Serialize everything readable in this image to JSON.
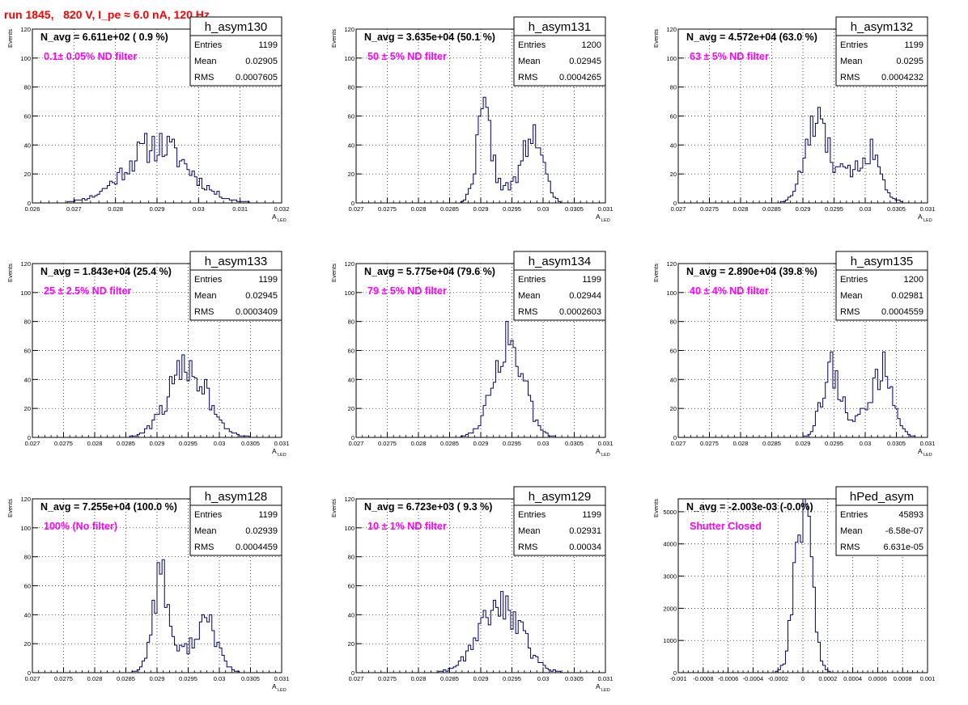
{
  "page_title": "run 1845,   820 V, I_pe ≈ 6.0 nA, 120 Hz",
  "colors": {
    "hist": "#00006e",
    "annotation": "#ff00ff",
    "title": "#ff0000",
    "grid": "#000000"
  },
  "chart_data": [
    {
      "type": "bar",
      "name": "h_asym130",
      "navg_text": "N_avg = 6.611e+02 ( 0.9 %)",
      "filter_text": "0.1± 0.05% ND filter",
      "stats": [
        [
          "Entries",
          "1199"
        ],
        [
          "Mean",
          "0.02905"
        ],
        [
          "RMS",
          "0.0007605"
        ]
      ],
      "xlim": [
        0.026,
        0.032
      ],
      "ylim": [
        0,
        120
      ],
      "xticks": [
        0.026,
        0.027,
        0.028,
        0.029,
        0.03,
        0.031,
        0.032
      ],
      "xtick_labels": [
        "0.026",
        "0.027",
        "0.028",
        "0.029",
        "0.03",
        "0.031",
        "0.032"
      ],
      "yticks": [
        0,
        20,
        40,
        60,
        80,
        100,
        120
      ],
      "ylabel": "Events",
      "xlabel": "A",
      "xlabel_sub": "LED",
      "peaks": [
        [
          0.029,
          0.00075,
          40
        ]
      ],
      "seed": 11
    },
    {
      "type": "bar",
      "name": "h_asym131",
      "navg_text": "N_avg = 3.635e+04 (50.1 %)",
      "filter_text": "50 ± 5% ND filter",
      "stats": [
        [
          "Entries",
          "1200"
        ],
        [
          "Mean",
          "0.02945"
        ],
        [
          "RMS",
          "0.0004265"
        ]
      ],
      "xlim": [
        0.027,
        0.031
      ],
      "ylim": [
        0,
        120
      ],
      "xticks": [
        0.027,
        0.0275,
        0.028,
        0.0285,
        0.029,
        0.0295,
        0.03,
        0.0305,
        0.031
      ],
      "xtick_labels": [
        "0.027",
        "0.0275",
        "0.028",
        "0.0285",
        "0.029",
        "0.0295",
        "0.03",
        "0.0305",
        "0.031"
      ],
      "yticks": [
        0,
        20,
        40,
        60,
        80,
        100,
        120
      ],
      "ylabel": "Events",
      "xlabel": "A",
      "xlabel_sub": "LED",
      "peaks": [
        [
          0.02905,
          0.00012,
          58
        ],
        [
          0.02985,
          0.00015,
          45
        ],
        [
          0.02945,
          0.00025,
          10
        ]
      ],
      "seed": 22
    },
    {
      "type": "bar",
      "name": "h_asym132",
      "navg_text": "N_avg = 4.572e+04 (63.0 %)",
      "filter_text": "63 ± 5% ND filter",
      "stats": [
        [
          "Entries",
          "1199"
        ],
        [
          "Mean",
          "0.0295"
        ],
        [
          "RMS",
          "0.0004232"
        ]
      ],
      "xlim": [
        0.027,
        0.031
      ],
      "ylim": [
        0,
        120
      ],
      "xticks": [
        0.027,
        0.0275,
        0.028,
        0.0285,
        0.029,
        0.0295,
        0.03,
        0.0305,
        0.031
      ],
      "xtick_labels": [
        "0.027",
        "0.0275",
        "0.028",
        "0.0285",
        "0.029",
        "0.0295",
        "0.03",
        "0.0305",
        "0.031"
      ],
      "yticks": [
        0,
        20,
        40,
        60,
        80,
        100,
        120
      ],
      "ylabel": "Events",
      "xlabel": "A",
      "xlabel_sub": "LED",
      "peaks": [
        [
          0.0292,
          0.00018,
          48
        ],
        [
          0.0301,
          0.00017,
          30
        ],
        [
          0.02965,
          0.0003,
          18
        ]
      ],
      "seed": 33
    },
    {
      "type": "bar",
      "name": "h_asym133",
      "navg_text": "N_avg = 1.843e+04 (25.4 %)",
      "filter_text": "25 ± 2.5% ND filter",
      "stats": [
        [
          "Entries",
          "1199"
        ],
        [
          "Mean",
          "0.02945"
        ],
        [
          "RMS",
          "0.0003409"
        ]
      ],
      "xlim": [
        0.027,
        0.031
      ],
      "ylim": [
        0,
        120
      ],
      "xticks": [
        0.027,
        0.0275,
        0.028,
        0.0285,
        0.029,
        0.0295,
        0.03,
        0.0305,
        0.031
      ],
      "xtick_labels": [
        "0.027",
        "0.0275",
        "0.028",
        "0.0285",
        "0.029",
        "0.0295",
        "0.03",
        "0.0305",
        "0.031"
      ],
      "yticks": [
        0,
        20,
        40,
        60,
        80,
        100,
        120
      ],
      "ylabel": "Events",
      "xlabel": "A",
      "xlabel_sub": "LED",
      "peaks": [
        [
          0.0295,
          0.00032,
          48
        ]
      ],
      "seed": 44
    },
    {
      "type": "bar",
      "name": "h_asym134",
      "navg_text": "N_avg = 5.775e+04 (79.6 %)",
      "filter_text": "79 ± 5% ND filter",
      "stats": [
        [
          "Entries",
          "1199"
        ],
        [
          "Mean",
          "0.02944"
        ],
        [
          "RMS",
          "0.0002603"
        ]
      ],
      "xlim": [
        0.027,
        0.031
      ],
      "ylim": [
        0,
        120
      ],
      "xticks": [
        0.027,
        0.0275,
        0.028,
        0.0285,
        0.029,
        0.0295,
        0.03,
        0.0305,
        0.031
      ],
      "xtick_labels": [
        "0.027",
        "0.0275",
        "0.028",
        "0.0285",
        "0.029",
        "0.0295",
        "0.03",
        "0.0305",
        "0.031"
      ],
      "yticks": [
        0,
        20,
        40,
        60,
        80,
        100,
        120
      ],
      "ylabel": "Events",
      "xlabel": "A",
      "xlabel_sub": "LED",
      "peaks": [
        [
          0.02944,
          0.00024,
          68
        ]
      ],
      "seed": 55
    },
    {
      "type": "bar",
      "name": "h_asym135",
      "navg_text": "N_avg = 2.890e+04 (39.8 %)",
      "filter_text": "40 ± 4% ND filter",
      "stats": [
        [
          "Entries",
          "1200"
        ],
        [
          "Mean",
          "0.02981"
        ],
        [
          "RMS",
          "0.0004559"
        ]
      ],
      "xlim": [
        0.027,
        0.031
      ],
      "ylim": [
        0,
        120
      ],
      "xticks": [
        0.027,
        0.0275,
        0.028,
        0.0285,
        0.029,
        0.0295,
        0.03,
        0.0305,
        0.031
      ],
      "xtick_labels": [
        "0.027",
        "0.0275",
        "0.028",
        "0.0285",
        "0.029",
        "0.0295",
        "0.03",
        "0.0305",
        "0.031"
      ],
      "yticks": [
        0,
        20,
        40,
        60,
        80,
        100,
        120
      ],
      "ylabel": "Events",
      "xlabel": "A",
      "xlabel_sub": "LED",
      "peaks": [
        [
          0.02945,
          0.00015,
          46
        ],
        [
          0.0303,
          0.00016,
          45
        ],
        [
          0.0299,
          0.0002,
          12
        ]
      ],
      "seed": 66
    },
    {
      "type": "bar",
      "name": "h_asym128",
      "navg_text": "N_avg = 7.255e+04 (100.0 %)",
      "filter_text": "100% (No filter)",
      "stats": [
        [
          "Entries",
          "1199"
        ],
        [
          "Mean",
          "0.02939"
        ],
        [
          "RMS",
          "0.0004459"
        ]
      ],
      "xlim": [
        0.027,
        0.031
      ],
      "ylim": [
        0,
        120
      ],
      "xticks": [
        0.027,
        0.0275,
        0.028,
        0.0285,
        0.029,
        0.0295,
        0.03,
        0.0305,
        0.031
      ],
      "xtick_labels": [
        "0.027",
        "0.0275",
        "0.028",
        "0.0285",
        "0.029",
        "0.0295",
        "0.03",
        "0.0305",
        "0.031"
      ],
      "yticks": [
        0,
        20,
        40,
        60,
        80,
        100,
        120
      ],
      "ylabel": "Events",
      "xlabel": "A",
      "xlabel_sub": "LED",
      "peaks": [
        [
          0.02905,
          0.00012,
          62
        ],
        [
          0.0298,
          0.00018,
          30
        ],
        [
          0.02935,
          0.0003,
          12
        ]
      ],
      "seed": 77
    },
    {
      "type": "bar",
      "name": "h_asym129",
      "navg_text": "N_avg = 6.723e+03 ( 9.3 %)",
      "filter_text": "10 ± 1% ND filter",
      "stats": [
        [
          "Entries",
          "1199"
        ],
        [
          "Mean",
          "0.02931"
        ],
        [
          "RMS",
          "0.00034"
        ]
      ],
      "xlim": [
        0.027,
        0.031
      ],
      "ylim": [
        0,
        120
      ],
      "xticks": [
        0.027,
        0.0275,
        0.028,
        0.0285,
        0.029,
        0.0295,
        0.03,
        0.0305,
        0.031
      ],
      "xtick_labels": [
        "0.027",
        "0.0275",
        "0.028",
        "0.0285",
        "0.029",
        "0.0295",
        "0.03",
        "0.0305",
        "0.031"
      ],
      "yticks": [
        0,
        20,
        40,
        60,
        80,
        100,
        120
      ],
      "ylabel": "Events",
      "xlabel": "A",
      "xlabel_sub": "LED",
      "peaks": [
        [
          0.0293,
          0.00033,
          50
        ]
      ],
      "seed": 88
    },
    {
      "type": "bar",
      "name": "hPed_asym",
      "navg_text": "N_avg = -2.003e-03 (-0.0%)",
      "filter_text": "Shutter Closed",
      "stats": [
        [
          "Entries",
          "45893"
        ],
        [
          "Mean",
          "-6.58e-07"
        ],
        [
          "RMS",
          "6.631e-05"
        ]
      ],
      "xlim": [
        -0.001,
        0.001
      ],
      "ylim": [
        0,
        5400
      ],
      "xticks": [
        -0.001,
        -0.0008,
        -0.0006,
        -0.0004,
        -0.0002,
        0,
        0.0002,
        0.0004,
        0.0006,
        0.0008,
        0.001
      ],
      "xtick_labels": [
        "-0.001",
        "-0.0008",
        "-0.0006",
        "-0.0004",
        "-0.0002",
        "0",
        "0.0002",
        "0.0004",
        "0.0006",
        "0.0008",
        "0.001"
      ],
      "yticks": [
        0,
        1000,
        2000,
        3000,
        4000,
        5000
      ],
      "ylabel": "Events",
      "xlabel": "",
      "xlabel_sub": "",
      "peaks": [
        [
          0.0,
          6.6e-05,
          5300
        ]
      ],
      "seed": 99
    }
  ]
}
